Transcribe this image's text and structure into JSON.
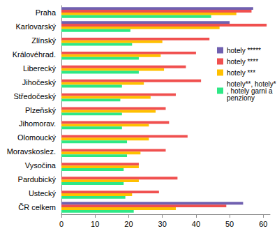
{
  "chart_data": {
    "type": "bar",
    "orientation": "horizontal",
    "grid": false,
    "legend": "right",
    "categories": [
      "Praha",
      "Karlovarský",
      "Zlínský",
      "Královéhrad.",
      "Liberecký",
      "Jihočeský",
      "Středočeský",
      "Plzeňský",
      "Jihomorav.",
      "Olomoucký",
      "Moravskoslez.",
      "Vysočina",
      "Pardubický",
      "Ustecký",
      "ČR celkem"
    ],
    "series": [
      {
        "name": "hotely *****",
        "color": "#7060b0",
        "values": [
          57,
          50,
          null,
          null,
          null,
          null,
          null,
          null,
          null,
          null,
          null,
          null,
          null,
          null,
          54
        ]
      },
      {
        "name": "hotely ****",
        "color": "#f0504f",
        "values": [
          56.5,
          61,
          44,
          40,
          37,
          41.5,
          34,
          31,
          32,
          37.5,
          31,
          23,
          34.5,
          29,
          49
        ]
      },
      {
        "name": "hotely ***",
        "color": "#ffc000",
        "values": [
          52,
          47,
          30,
          29.5,
          30.5,
          24.5,
          26.5,
          28,
          26,
          26,
          23.5,
          23,
          23,
          21,
          34
        ]
      },
      {
        "name": "hotely**, hotely*, hotely garni a penziony",
        "color": "#2ee886",
        "values": [
          44.5,
          20.5,
          21,
          23,
          23,
          18,
          17.5,
          18,
          18,
          19.5,
          19.5,
          18.5,
          18.5,
          19,
          21.5
        ]
      }
    ],
    "xlim": [
      0,
      62
    ],
    "xticks": [
      0,
      10,
      20,
      30,
      40,
      50,
      60
    ]
  }
}
